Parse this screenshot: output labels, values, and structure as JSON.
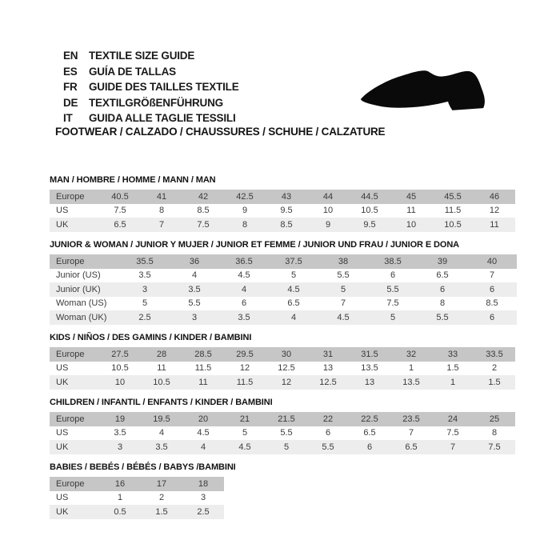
{
  "header": {
    "languages": [
      {
        "code": "EN",
        "label": "TEXTILE SIZE GUIDE"
      },
      {
        "code": "ES",
        "label": "GUÍA DE TALLAS"
      },
      {
        "code": "FR",
        "label": "GUIDE DES TAILLES TEXTILE"
      },
      {
        "code": "DE",
        "label": "TEXTILGRÖßENFÜHRUNG"
      },
      {
        "code": "IT",
        "label": "GUIDA ALLE TAGLIE TESSILI"
      }
    ],
    "category_line": "FOOTWEAR / CALZADO / CHAUSSURES / SCHUHE / CALZATURE",
    "shoe_icon": "dress-shoe-silhouette"
  },
  "colors": {
    "header_row_bg": "#c6c6c6",
    "alt_row_bg": "#ededed",
    "row_bg": "#ffffff",
    "table_text": "#3c3c3c",
    "heading_text": "#121212",
    "icon_color": "#0a0a0a"
  },
  "tables": [
    {
      "id": "man",
      "title": "MAN / HOMBRE / HOMME / MANN / MAN",
      "rows": [
        {
          "label": "Europe",
          "values": [
            "40.5",
            "41",
            "42",
            "42.5",
            "43",
            "44",
            "44.5",
            "45",
            "45.5",
            "46"
          ]
        },
        {
          "label": "US",
          "values": [
            "7.5",
            "8",
            "8.5",
            "9",
            "9.5",
            "10",
            "10.5",
            "11",
            "11.5",
            "12"
          ]
        },
        {
          "label": "UK",
          "values": [
            "6.5",
            "7",
            "7.5",
            "8",
            "8.5",
            "9",
            "9.5",
            "10",
            "10.5",
            "11"
          ]
        }
      ]
    },
    {
      "id": "junior-woman",
      "title": "JUNIOR & WOMAN / JUNIOR Y MUJER / JUNIOR ET FEMME / JUNIOR UND FRAU / JUNIOR E DONA",
      "rows": [
        {
          "label": "Europe",
          "values": [
            "35.5",
            "36",
            "36.5",
            "37.5",
            "38",
            "38.5",
            "39",
            "40"
          ]
        },
        {
          "label": "Junior (US)",
          "values": [
            "3.5",
            "4",
            "4.5",
            "5",
            "5.5",
            "6",
            "6.5",
            "7"
          ]
        },
        {
          "label": "Junior (UK)",
          "values": [
            "3",
            "3.5",
            "4",
            "4.5",
            "5",
            "5.5",
            "6",
            "6"
          ]
        },
        {
          "label": "Woman (US)",
          "values": [
            "5",
            "5.5",
            "6",
            "6.5",
            "7",
            "7.5",
            "8",
            "8.5"
          ]
        },
        {
          "label": "Woman (UK)",
          "values": [
            "2.5",
            "3",
            "3.5",
            "4",
            "4.5",
            "5",
            "5.5",
            "6"
          ]
        }
      ]
    },
    {
      "id": "kids",
      "title": "KIDS / NIÑOS / DES GAMINS / KINDER / BAMBINI",
      "rows": [
        {
          "label": "Europe",
          "values": [
            "27.5",
            "28",
            "28.5",
            "29.5",
            "30",
            "31",
            "31.5",
            "32",
            "33",
            "33.5"
          ]
        },
        {
          "label": "US",
          "values": [
            "10.5",
            "11",
            "11.5",
            "12",
            "12.5",
            "13",
            "13.5",
            "1",
            "1.5",
            "2"
          ]
        },
        {
          "label": "UK",
          "values": [
            "10",
            "10.5",
            "11",
            "11.5",
            "12",
            "12.5",
            "13",
            "13.5",
            "1",
            "1.5"
          ]
        }
      ]
    },
    {
      "id": "children",
      "title": "CHILDREN / INFANTIL / ENFANTS / KINDER / BAMBINI",
      "rows": [
        {
          "label": "Europe",
          "values": [
            "19",
            "19.5",
            "20",
            "21",
            "21.5",
            "22",
            "22.5",
            "23.5",
            "24",
            "25"
          ]
        },
        {
          "label": "US",
          "values": [
            "3.5",
            "4",
            "4.5",
            "5",
            "5.5",
            "6",
            "6.5",
            "7",
            "7.5",
            "8"
          ]
        },
        {
          "label": "UK",
          "values": [
            "3",
            "3.5",
            "4",
            "4.5",
            "5",
            "5.5",
            "6",
            "6.5",
            "7",
            "7.5"
          ]
        }
      ]
    },
    {
      "id": "babies",
      "title": "BABIES / BEBÉS / BÉBÉS / BABYS /BAMBINI",
      "rows": [
        {
          "label": "Europe",
          "values": [
            "16",
            "17",
            "18"
          ]
        },
        {
          "label": "US",
          "values": [
            "1",
            "2",
            "3"
          ]
        },
        {
          "label": "UK",
          "values": [
            "0.5",
            "1.5",
            "2.5"
          ]
        }
      ]
    }
  ]
}
